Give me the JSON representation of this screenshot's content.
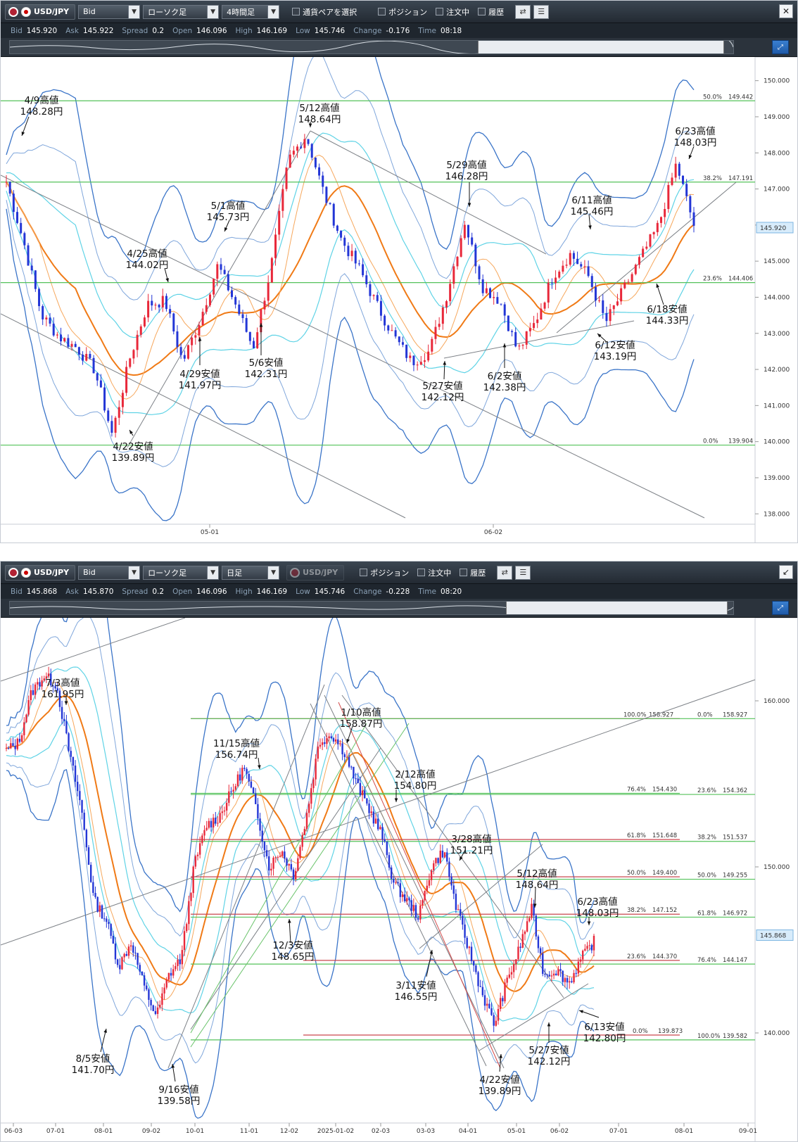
{
  "top": {
    "pair": "USD/JPY",
    "price_type": "Bid",
    "chart_type": "ローソク足",
    "timeframe": "4時間足",
    "select_pairs": "通貨ペアを選択",
    "position": "ポジション",
    "orders": "注文中",
    "history": "履歴",
    "quote": {
      "bid_k": "Bid",
      "bid": "145.920",
      "ask_k": "Ask",
      "ask": "145.922",
      "spread_k": "Spread",
      "spread": "0.2",
      "open_k": "Open",
      "open": "146.096",
      "high_k": "High",
      "high": "146.169",
      "low_k": "Low",
      "low": "145.746",
      "change_k": "Change",
      "change": "-0.176",
      "time_k": "Time",
      "time": "08:18"
    },
    "current_price": "145.920",
    "y_ticks": [
      "150.000",
      "149.000",
      "148.000",
      "147.000",
      "146.000",
      "145.000",
      "144.000",
      "143.000",
      "142.000",
      "141.000",
      "140.000",
      "139.000",
      "138.000"
    ],
    "x_ticks": [
      "05-01",
      "06-02"
    ],
    "fib": [
      {
        "pct": "50.0%",
        "val": "149.442"
      },
      {
        "pct": "38.2%",
        "val": "147.191"
      },
      {
        "pct": "23.6%",
        "val": "144.406"
      },
      {
        "pct": "0.0%",
        "val": "139.904"
      }
    ],
    "annotations": [
      {
        "l1": "4/9高値",
        "l2": "148.28円"
      },
      {
        "l1": "5/12高値",
        "l2": "148.64円"
      },
      {
        "l1": "5/29高値",
        "l2": "146.28円"
      },
      {
        "l1": "6/23高値",
        "l2": "148.03円"
      },
      {
        "l1": "5/1高値",
        "l2": "145.73円"
      },
      {
        "l1": "6/11高値",
        "l2": "145.46円"
      },
      {
        "l1": "4/25高値",
        "l2": "144.02円"
      },
      {
        "l1": "6/18安値",
        "l2": "144.33円"
      },
      {
        "l1": "6/12安値",
        "l2": "143.19円"
      },
      {
        "l1": "4/29安値",
        "l2": "141.97円"
      },
      {
        "l1": "5/6安値",
        "l2": "142.31円"
      },
      {
        "l1": "5/27安値",
        "l2": "142.12円"
      },
      {
        "l1": "6/2安値",
        "l2": "142.38円"
      },
      {
        "l1": "4/22安値",
        "l2": "139.89円"
      }
    ],
    "colors": {
      "candle_up": "#e8283a",
      "candle_down": "#2336d6",
      "ma_orange": "#f07a16",
      "bb_cyan": "#5fd3e6",
      "bb_blue": "#3a74c8",
      "fib_green": "#54c25a"
    }
  },
  "bottom": {
    "pair": "USD/JPY",
    "price_type": "Bid",
    "chart_type": "ローソク足",
    "timeframe": "日足",
    "pair2": "USD/JPY",
    "position": "ポジション",
    "orders": "注文中",
    "history": "履歴",
    "quote": {
      "bid_k": "Bid",
      "bid": "145.868",
      "ask_k": "Ask",
      "ask": "145.870",
      "spread_k": "Spread",
      "spread": "0.2",
      "open_k": "Open",
      "open": "146.096",
      "high_k": "High",
      "high": "146.169",
      "low_k": "Low",
      "low": "145.746",
      "change_k": "Change",
      "change": "-0.228",
      "time_k": "Time",
      "time": "08:20"
    },
    "current_price": "145.868",
    "y_ticks": [
      "160.000",
      "150.000",
      "140.000"
    ],
    "x_ticks": [
      "06-03",
      "07-01",
      "08-01",
      "09-02",
      "10-01",
      "11-01",
      "12-02",
      "2025-01-02",
      "02-03",
      "03-03",
      "04-01",
      "05-01",
      "06-02",
      "07-01",
      "08-01",
      "09-01"
    ],
    "fib_left": [
      {
        "pct": "100.0%",
        "val": "158.927"
      },
      {
        "pct": "76.4%",
        "val": "154.430"
      },
      {
        "pct": "61.8%",
        "val": "151.648"
      },
      {
        "pct": "50.0%",
        "val": "149.400"
      },
      {
        "pct": "38.2%",
        "val": "147.152"
      },
      {
        "pct": "23.6%",
        "val": "144.370"
      },
      {
        "pct": "0.0%",
        "val": "139.873"
      }
    ],
    "fib_right": [
      {
        "pct": "0.0%",
        "val": "158.927"
      },
      {
        "pct": "23.6%",
        "val": "154.362"
      },
      {
        "pct": "38.2%",
        "val": "151.537"
      },
      {
        "pct": "50.0%",
        "val": "149.255"
      },
      {
        "pct": "61.8%",
        "val": "146.972"
      },
      {
        "pct": "76.4%",
        "val": "144.147"
      },
      {
        "pct": "100.0%",
        "val": "139.582"
      }
    ],
    "annotations": [
      {
        "l1": "7/3高値",
        "l2": "161.95円"
      },
      {
        "l1": "1/10高値",
        "l2": "158.87円"
      },
      {
        "l1": "11/15高値",
        "l2": "156.74円"
      },
      {
        "l1": "2/12高値",
        "l2": "154.80円"
      },
      {
        "l1": "3/28高値",
        "l2": "151.21円"
      },
      {
        "l1": "5/12高値",
        "l2": "148.64円"
      },
      {
        "l1": "6/23高値",
        "l2": "148.03円"
      },
      {
        "l1": "12/3安値",
        "l2": "148.65円"
      },
      {
        "l1": "3/11安値",
        "l2": "146.55円"
      },
      {
        "l1": "6/13安値",
        "l2": "142.80円"
      },
      {
        "l1": "8/5安値",
        "l2": "141.70円"
      },
      {
        "l1": "5/27安値",
        "l2": "142.12円"
      },
      {
        "l1": "9/16安値",
        "l2": "139.58円"
      },
      {
        "l1": "4/22安値",
        "l2": "139.89円"
      }
    ]
  }
}
